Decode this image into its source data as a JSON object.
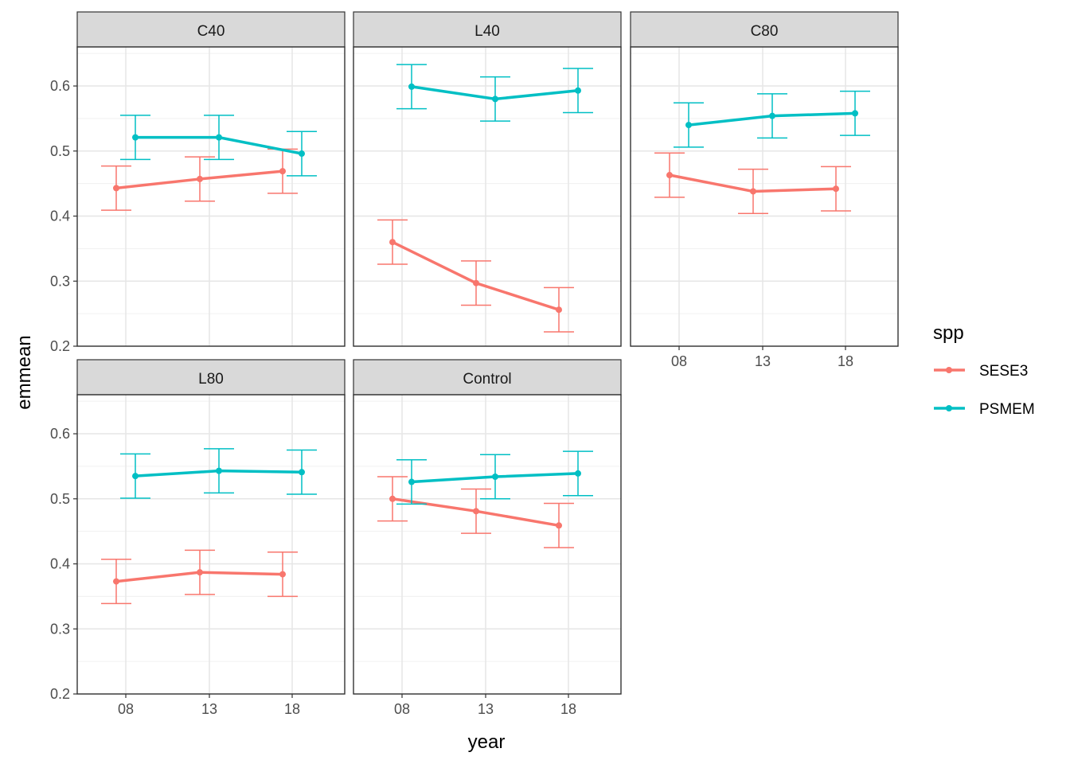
{
  "chart_data": {
    "type": "line",
    "xlabel": "year",
    "ylabel": "emmean",
    "x_categories": [
      "08",
      "13",
      "18"
    ],
    "y_ticks": [
      0.2,
      0.3,
      0.4,
      0.5,
      0.6
    ],
    "ylim": [
      0.2,
      0.66
    ],
    "grid": true,
    "error_bars": true,
    "legend": {
      "title": "spp",
      "position": "right",
      "entries": [
        {
          "name": "SESE3",
          "color": "#F8766D"
        },
        {
          "name": "PSMEM",
          "color": "#00BFC4"
        }
      ]
    },
    "panels": [
      {
        "name": "C40",
        "series": [
          {
            "name": "SESE3",
            "color": "#F8766D",
            "values": [
              0.443,
              0.457,
              0.469
            ],
            "lower": [
              0.409,
              0.423,
              0.435
            ],
            "upper": [
              0.477,
              0.491,
              0.503
            ]
          },
          {
            "name": "PSMEM",
            "color": "#00BFC4",
            "values": [
              0.521,
              0.521,
              0.496
            ],
            "lower": [
              0.487,
              0.487,
              0.462
            ],
            "upper": [
              0.555,
              0.555,
              0.53
            ]
          }
        ]
      },
      {
        "name": "L40",
        "series": [
          {
            "name": "SESE3",
            "color": "#F8766D",
            "values": [
              0.36,
              0.297,
              0.256
            ],
            "lower": [
              0.326,
              0.263,
              0.222
            ],
            "upper": [
              0.394,
              0.331,
              0.29
            ]
          },
          {
            "name": "PSMEM",
            "color": "#00BFC4",
            "values": [
              0.599,
              0.58,
              0.593
            ],
            "lower": [
              0.565,
              0.546,
              0.559
            ],
            "upper": [
              0.633,
              0.614,
              0.627
            ]
          }
        ]
      },
      {
        "name": "C80",
        "series": [
          {
            "name": "SESE3",
            "color": "#F8766D",
            "values": [
              0.463,
              0.438,
              0.442
            ],
            "lower": [
              0.429,
              0.404,
              0.408
            ],
            "upper": [
              0.497,
              0.472,
              0.476
            ]
          },
          {
            "name": "PSMEM",
            "color": "#00BFC4",
            "values": [
              0.54,
              0.554,
              0.558
            ],
            "lower": [
              0.506,
              0.52,
              0.524
            ],
            "upper": [
              0.574,
              0.588,
              0.592
            ]
          }
        ]
      },
      {
        "name": "L80",
        "series": [
          {
            "name": "SESE3",
            "color": "#F8766D",
            "values": [
              0.373,
              0.387,
              0.384
            ],
            "lower": [
              0.339,
              0.353,
              0.35
            ],
            "upper": [
              0.407,
              0.421,
              0.418
            ]
          },
          {
            "name": "PSMEM",
            "color": "#00BFC4",
            "values": [
              0.535,
              0.543,
              0.541
            ],
            "lower": [
              0.501,
              0.509,
              0.507
            ],
            "upper": [
              0.569,
              0.577,
              0.575
            ]
          }
        ]
      },
      {
        "name": "Control",
        "series": [
          {
            "name": "SESE3",
            "color": "#F8766D",
            "values": [
              0.5,
              0.481,
              0.459
            ],
            "lower": [
              0.466,
              0.447,
              0.425
            ],
            "upper": [
              0.534,
              0.515,
              0.493
            ]
          },
          {
            "name": "PSMEM",
            "color": "#00BFC4",
            "values": [
              0.526,
              0.534,
              0.539
            ],
            "lower": [
              0.492,
              0.5,
              0.505
            ],
            "upper": [
              0.56,
              0.568,
              0.573
            ]
          }
        ]
      }
    ]
  }
}
